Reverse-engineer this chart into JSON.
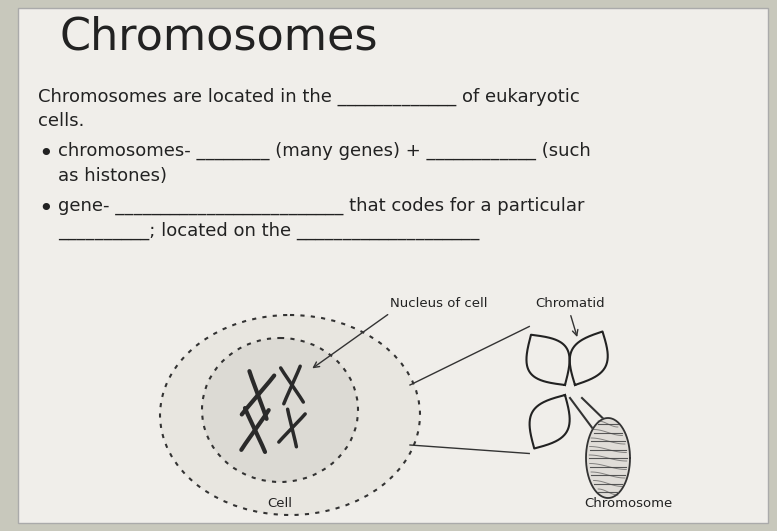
{
  "title": "Chromosomes",
  "title_fontsize": 32,
  "title_font": "DejaVu Sans",
  "bg_color": "#c8c8bc",
  "paper_color": "#f0eeea",
  "line1": "Chromosomes are located in the _____________ of eukaryotic",
  "line1b": "cells.",
  "bullet1_a": "chromosomes- ________ (many genes) + ____________ (such",
  "bullet1_b": "as histones)",
  "bullet2_a": "gene- _________________________ that codes for a particular",
  "bullet2_b": "__________; located on the ____________________",
  "label_nucleus": "Nucleus of cell",
  "label_chromatid": "Chromatid",
  "label_cell": "Cell",
  "label_chromosome": "Chromosome",
  "text_color": "#222222",
  "body_fontsize": 13,
  "body_font": "DejaVu Sans"
}
